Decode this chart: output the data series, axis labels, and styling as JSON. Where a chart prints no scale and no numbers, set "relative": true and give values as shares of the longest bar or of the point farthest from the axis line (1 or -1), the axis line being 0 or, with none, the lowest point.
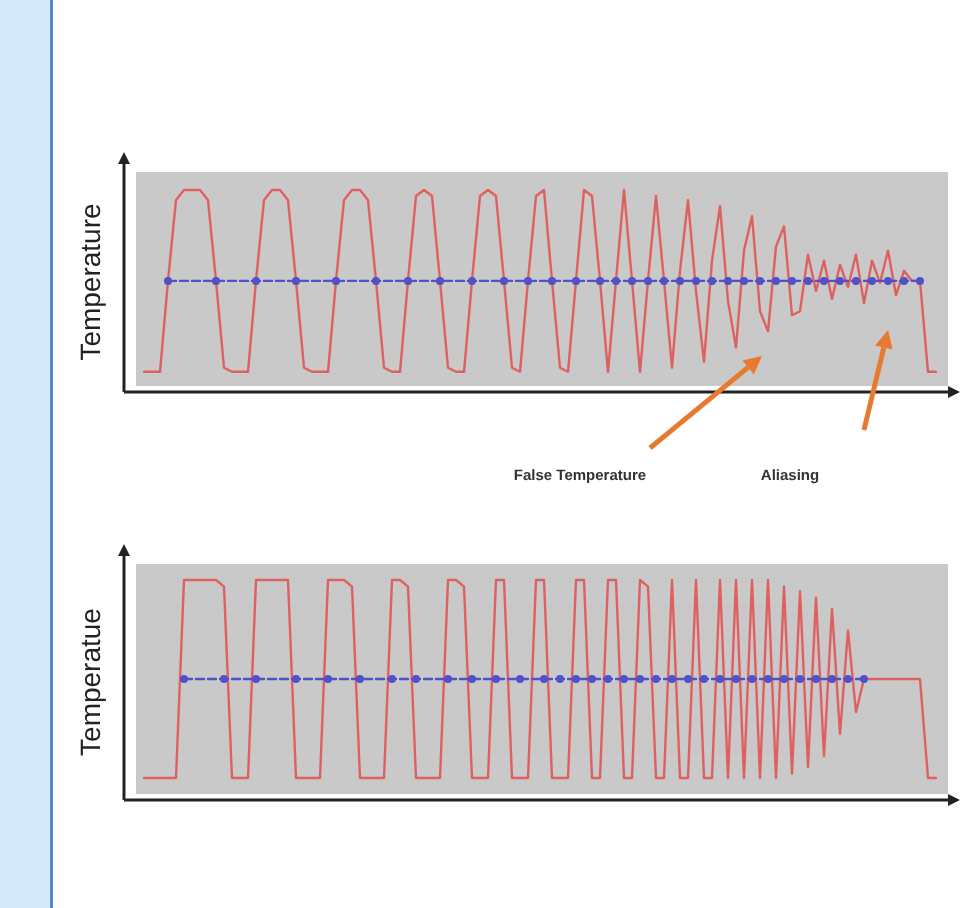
{
  "chart_data": [
    {
      "type": "line",
      "ylabel": "Temperature",
      "relative": true,
      "categories": [
        null,
        null,
        null,
        null,
        null,
        null,
        null,
        null,
        null,
        null,
        null,
        null,
        null,
        null,
        null,
        null,
        null,
        null,
        null,
        null,
        null,
        null,
        null,
        null,
        null,
        null,
        null,
        null,
        null,
        null,
        null,
        null,
        null,
        null,
        null,
        null,
        null,
        null,
        null,
        null,
        null,
        null,
        null,
        null,
        null,
        null,
        null,
        null,
        null,
        null,
        null,
        null,
        null,
        null,
        null,
        null,
        null,
        null,
        null,
        null,
        null,
        null,
        null,
        null,
        null,
        null,
        null,
        null,
        null,
        null,
        null,
        null,
        null,
        null,
        null,
        null,
        null,
        null,
        null,
        null,
        null,
        null,
        null,
        null,
        null,
        null,
        null,
        null,
        null,
        null,
        null,
        null,
        null,
        null,
        null,
        null,
        null,
        null,
        null,
        null
      ],
      "annotations": [
        "False Temperature",
        "Aliasing"
      ],
      "series": [
        {
          "color": "#e06060",
          "marker": "none",
          "values": [
            0.1,
            0.1,
            0.1,
            0.55,
            0.95,
            1,
            1,
            1,
            0.95,
            0.55,
            0.12,
            0.1,
            0.1,
            0.1,
            0.55,
            0.95,
            1,
            1,
            0.95,
            0.55,
            0.12,
            0.1,
            0.1,
            0.1,
            0.55,
            0.95,
            1,
            1,
            0.95,
            0.55,
            0.12,
            0.1,
            0.1,
            0.55,
            0.97,
            1,
            0.97,
            0.55,
            0.12,
            0.1,
            0.1,
            0.55,
            0.97,
            1,
            0.97,
            0.55,
            0.12,
            0.1,
            0.55,
            0.97,
            1,
            0.55,
            0.12,
            0.1,
            0.55,
            1,
            0.97,
            0.55,
            0.1,
            0.55,
            1,
            0.55,
            0.1,
            0.55,
            0.97,
            0.55,
            0.12,
            0.6,
            0.95,
            0.5,
            0.15,
            0.65,
            0.92,
            0.45,
            0.22,
            0.7,
            0.87,
            0.4,
            0.3,
            0.72,
            0.82,
            0.38,
            0.4,
            0.68,
            0.5,
            0.65,
            0.46,
            0.63,
            0.52,
            0.68,
            0.44,
            0.65,
            0.54,
            0.7,
            0.48,
            0.6,
            0.55,
            0.55,
            0.1,
            0.1
          ]
        },
        {
          "color": "#5050c8",
          "marker": "circle",
          "line_style": "dashed",
          "values": [
            null,
            null,
            null,
            0.55,
            null,
            null,
            null,
            null,
            null,
            0.55,
            null,
            null,
            null,
            null,
            0.55,
            null,
            null,
            null,
            null,
            0.55,
            null,
            null,
            null,
            null,
            0.55,
            null,
            null,
            null,
            null,
            0.55,
            null,
            null,
            null,
            0.55,
            null,
            null,
            null,
            0.55,
            null,
            null,
            null,
            0.55,
            null,
            null,
            null,
            0.55,
            null,
            null,
            0.55,
            null,
            null,
            0.55,
            null,
            null,
            0.55,
            null,
            null,
            0.55,
            null,
            0.55,
            null,
            0.55,
            null,
            0.55,
            null,
            0.55,
            null,
            0.55,
            null,
            0.55,
            null,
            0.55,
            null,
            0.55,
            null,
            0.55,
            null,
            0.55,
            null,
            0.55,
            null,
            0.55,
            null,
            0.55,
            null,
            0.55,
            null,
            0.55,
            null,
            0.55,
            null,
            0.55,
            null,
            0.55,
            null,
            0.55,
            null,
            0.55,
            null,
            null
          ]
        }
      ]
    },
    {
      "type": "line",
      "ylabel": "Temperatue",
      "relative": true,
      "categories": [
        null,
        null,
        null,
        null,
        null,
        null,
        null,
        null,
        null,
        null,
        null,
        null,
        null,
        null,
        null,
        null,
        null,
        null,
        null,
        null,
        null,
        null,
        null,
        null,
        null,
        null,
        null,
        null,
        null,
        null,
        null,
        null,
        null,
        null,
        null,
        null,
        null,
        null,
        null,
        null,
        null,
        null,
        null,
        null,
        null,
        null,
        null,
        null,
        null,
        null,
        null,
        null,
        null,
        null,
        null,
        null,
        null,
        null,
        null,
        null,
        null,
        null,
        null,
        null,
        null,
        null,
        null,
        null,
        null,
        null,
        null,
        null,
        null,
        null,
        null,
        null,
        null,
        null,
        null,
        null,
        null,
        null,
        null,
        null,
        null,
        null,
        null,
        null,
        null,
        null,
        null,
        null,
        null,
        null,
        null,
        null,
        null,
        null,
        null,
        null
      ],
      "series": [
        {
          "color": "#e06060",
          "marker": "none",
          "values": [
            0.1,
            0.1,
            0.1,
            0.1,
            0.1,
            1,
            1,
            1,
            1,
            1,
            0.97,
            0.1,
            0.1,
            0.1,
            1,
            1,
            1,
            1,
            1,
            0.1,
            0.1,
            0.1,
            0.1,
            1,
            1,
            1,
            0.97,
            0.1,
            0.1,
            0.1,
            0.1,
            1,
            1,
            0.97,
            0.1,
            0.1,
            0.1,
            0.1,
            1,
            1,
            0.97,
            0.1,
            0.1,
            0.1,
            1,
            1,
            0.1,
            0.1,
            0.1,
            1,
            1,
            0.1,
            0.1,
            0.1,
            1,
            1,
            0.1,
            0.1,
            1,
            1,
            0.1,
            0.1,
            1,
            0.97,
            0.1,
            0.1,
            1,
            0.1,
            0.1,
            1,
            0.1,
            0.1,
            1,
            0.1,
            1,
            0.1,
            1,
            0.1,
            1,
            0.1,
            0.97,
            0.12,
            0.95,
            0.15,
            0.92,
            0.2,
            0.87,
            0.3,
            0.77,
            0.4,
            0.55,
            0.55,
            0.55,
            0.55,
            0.55,
            0.55,
            0.55,
            0.55,
            0.1,
            0.1
          ]
        },
        {
          "color": "#5050c8",
          "marker": "circle",
          "line_style": "dashed",
          "values": [
            null,
            null,
            null,
            null,
            null,
            0.55,
            null,
            null,
            null,
            null,
            0.55,
            null,
            null,
            null,
            0.55,
            null,
            null,
            null,
            null,
            0.55,
            null,
            null,
            null,
            0.55,
            null,
            null,
            null,
            0.55,
            null,
            null,
            null,
            0.55,
            null,
            null,
            0.55,
            null,
            null,
            null,
            0.55,
            null,
            null,
            0.55,
            null,
            null,
            0.55,
            null,
            null,
            0.55,
            null,
            null,
            0.55,
            null,
            0.55,
            null,
            0.55,
            null,
            0.55,
            null,
            0.55,
            null,
            0.55,
            null,
            0.55,
            null,
            0.55,
            null,
            0.55,
            null,
            0.55,
            null,
            0.55,
            null,
            0.55,
            null,
            0.55,
            null,
            0.55,
            null,
            0.55,
            null,
            0.55,
            null,
            0.55,
            null,
            0.55,
            null,
            0.55,
            null,
            0.55,
            null,
            0.55,
            null,
            null,
            null,
            null,
            null,
            null,
            null,
            null,
            null
          ]
        }
      ]
    }
  ]
}
